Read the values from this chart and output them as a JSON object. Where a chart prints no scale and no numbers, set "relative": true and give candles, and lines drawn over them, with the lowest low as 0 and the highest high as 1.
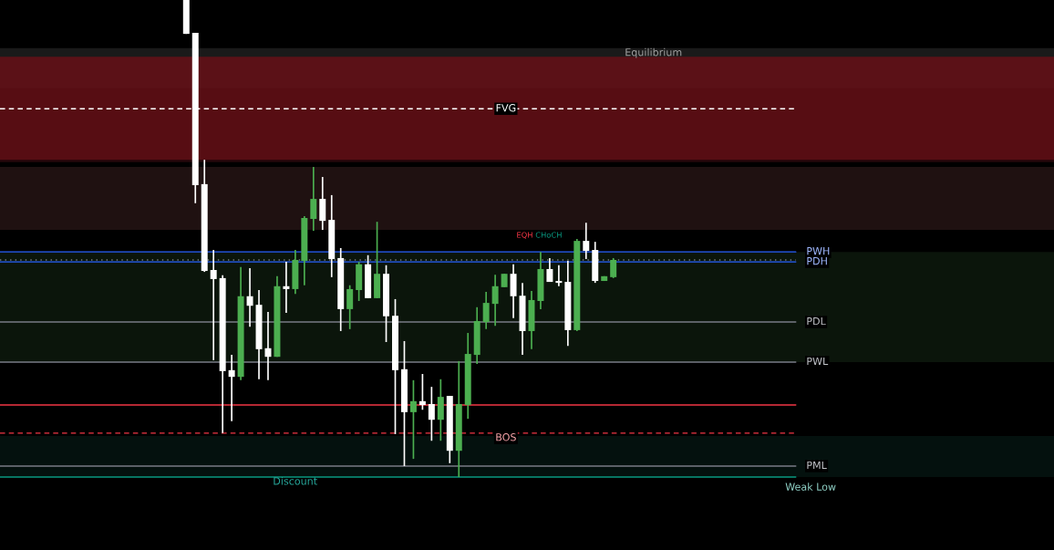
{
  "chart_data": {
    "type": "candlestick",
    "relative": true,
    "categories": [
      null,
      null,
      null,
      null,
      null,
      null,
      null,
      null,
      null,
      null,
      null,
      null,
      null,
      null,
      null,
      null,
      null,
      null,
      null,
      null,
      null,
      null,
      null,
      null,
      null,
      null,
      null,
      null,
      null,
      null,
      null,
      null,
      null,
      null,
      null,
      null,
      null,
      null,
      null,
      null,
      null,
      null,
      null,
      null,
      null,
      null,
      null,
      null,
      null,
      null,
      null,
      null,
      null,
      null,
      null,
      null,
      null,
      null,
      null,
      null,
      null,
      null,
      null,
      null,
      null,
      null,
      null,
      null,
      null,
      null,
      null,
      null,
      null,
      null,
      null,
      null,
      null,
      null,
      null,
      null,
      null,
      null,
      null,
      null,
      null,
      null,
      null,
      null,
      null,
      null,
      null,
      null,
      null,
      null,
      null,
      null,
      null,
      null,
      null,
      null,
      null,
      null,
      null,
      null,
      null,
      null,
      null,
      null,
      null,
      null,
      null,
      null,
      null,
      null,
      null,
      null
    ],
    "ohlc": [
      null,
      null,
      null,
      null,
      null,
      null,
      null,
      null,
      null,
      null,
      null,
      null,
      null,
      null,
      null,
      null,
      null,
      null,
      null,
      null,
      [
        1.0,
        1.0,
        0.929,
        0.929
      ],
      [
        0.931,
        0.931,
        0.574,
        0.612
      ],
      [
        0.614,
        0.665,
        0.43,
        0.432
      ],
      [
        0.434,
        0.476,
        0.245,
        0.415
      ],
      [
        0.417,
        0.423,
        0.092,
        0.222
      ],
      [
        0.224,
        0.256,
        0.117,
        0.21
      ],
      [
        0.21,
        0.44,
        0.203,
        0.379
      ],
      [
        0.379,
        0.438,
        0.315,
        0.359
      ],
      [
        0.361,
        0.392,
        0.205,
        0.268
      ],
      [
        0.27,
        0.346,
        0.203,
        0.252
      ],
      [
        0.252,
        0.421,
        0.252,
        0.4
      ],
      [
        0.4,
        0.451,
        0.344,
        0.394
      ],
      [
        0.394,
        0.476,
        0.384,
        0.455
      ],
      [
        0.453,
        0.547,
        0.402,
        0.543
      ],
      [
        0.541,
        0.65,
        0.516,
        0.583
      ],
      [
        0.583,
        0.629,
        0.518,
        0.537
      ],
      [
        0.539,
        0.591,
        0.419,
        0.457
      ],
      [
        0.459,
        0.48,
        0.306,
        0.352
      ],
      [
        0.352,
        0.402,
        0.31,
        0.394
      ],
      [
        0.392,
        0.451,
        0.369,
        0.446
      ],
      [
        0.446,
        0.465,
        0.375,
        0.375
      ],
      [
        0.375,
        0.535,
        0.375,
        0.426
      ],
      [
        0.426,
        0.444,
        0.283,
        0.337
      ],
      [
        0.338,
        0.373,
        0.09,
        0.224
      ],
      [
        0.226,
        0.285,
        0.023,
        0.136
      ],
      [
        0.136,
        0.203,
        0.038,
        0.159
      ],
      [
        0.159,
        0.216,
        0.141,
        0.151
      ],
      [
        0.153,
        0.189,
        0.076,
        0.12
      ],
      [
        0.12,
        0.205,
        0.076,
        0.168
      ],
      [
        0.17,
        0.17,
        0.029,
        0.055
      ],
      [
        0.055,
        0.243,
        0.0,
        0.153
      ],
      [
        0.151,
        0.302,
        0.122,
        0.258
      ],
      [
        0.256,
        0.356,
        0.237,
        0.327
      ],
      [
        0.325,
        0.388,
        0.31,
        0.365
      ],
      [
        0.363,
        0.424,
        0.317,
        0.4
      ],
      [
        0.398,
        0.426,
        0.398,
        0.426
      ],
      [
        0.426,
        0.446,
        0.333,
        0.379
      ],
      [
        0.38,
        0.407,
        0.256,
        0.306
      ],
      [
        0.306,
        0.39,
        0.268,
        0.371
      ],
      [
        0.369,
        0.472,
        0.352,
        0.436
      ],
      [
        0.436,
        0.459,
        0.409,
        0.409
      ],
      [
        0.411,
        0.444,
        0.4,
        0.407
      ],
      [
        0.409,
        0.453,
        0.275,
        0.308
      ],
      [
        0.308,
        0.499,
        0.306,
        0.495
      ],
      [
        0.495,
        0.533,
        0.457,
        0.474
      ],
      [
        0.476,
        0.493,
        0.407,
        0.411
      ],
      [
        0.411,
        0.421,
        0.411,
        0.421
      ],
      [
        0.419,
        0.459,
        0.417,
        0.455
      ],
      null,
      null,
      null,
      null,
      null,
      null,
      null,
      null,
      null,
      null,
      null,
      null,
      null,
      null,
      null,
      null,
      null,
      null,
      null,
      null,
      null,
      null,
      null,
      null,
      null,
      null,
      null,
      null,
      null,
      null,
      null,
      null,
      null,
      null,
      null,
      null,
      null,
      null,
      null,
      null,
      null,
      null,
      null,
      null,
      null,
      null,
      null,
      null
    ],
    "colors": [
      null,
      null,
      null,
      null,
      null,
      null,
      null,
      null,
      null,
      null,
      null,
      null,
      null,
      null,
      null,
      null,
      null,
      null,
      null,
      null,
      "#ffffff",
      "#ffffff",
      "#ffffff",
      "#ffffff",
      "#ffffff",
      "#ffffff",
      "#4caf50",
      "#ffffff",
      "#ffffff",
      "#ffffff",
      "#4caf50",
      "#ffffff",
      "#4caf50",
      "#4caf50",
      "#4caf50",
      "#ffffff",
      "#ffffff",
      "#ffffff",
      "#4caf50",
      "#4caf50",
      "#ffffff",
      "#4caf50",
      "#ffffff",
      "#ffffff",
      "#ffffff",
      "#4caf50",
      "#ffffff",
      "#ffffff",
      "#4caf50",
      "#ffffff",
      "#4caf50",
      "#4caf50",
      "#4caf50",
      "#4caf50",
      "#4caf50",
      "#4caf50",
      "#ffffff",
      "#ffffff",
      "#4caf50",
      "#4caf50",
      "#ffffff",
      "#ffffff",
      "#ffffff",
      "#4caf50",
      "#ffffff",
      "#ffffff",
      "#4caf50",
      "#4caf50",
      null,
      null,
      null,
      null,
      null,
      null,
      null,
      null,
      null,
      null,
      null,
      null,
      null,
      null,
      null,
      null,
      null,
      null,
      null,
      null,
      null,
      null,
      null,
      null,
      null,
      null,
      null,
      null,
      null,
      null,
      null,
      null,
      null,
      null,
      null,
      null,
      null,
      null,
      null,
      null,
      null,
      null,
      null,
      null,
      null,
      null,
      null,
      null
    ],
    "bands": [
      {
        "axis": "y",
        "from": 0.815,
        "to": 0.899,
        "label": "Equilibrium",
        "color": "#2b2b2b"
      },
      {
        "axis": "y",
        "from": 0.66,
        "to": 0.881,
        "color": "#3a0c12"
      },
      {
        "axis": "y",
        "from": 0.665,
        "to": 0.881,
        "color": "#7a1219"
      },
      {
        "axis": "y",
        "from": 0.518,
        "to": 0.65,
        "color": "#331c1c"
      },
      {
        "axis": "y",
        "from": 0.241,
        "to": 0.472,
        "color": "#132313"
      },
      {
        "axis": "y",
        "from": 0.0,
        "to": 0.086,
        "label": "Discount",
        "color": "#061c18"
      }
    ],
    "ref_lines": [
      {
        "axis": "y",
        "value": 0.772,
        "label": "FVG",
        "color": "#ffffff",
        "line_style": "dashed"
      },
      {
        "axis": "y",
        "value": 0.151,
        "color": "#f23645",
        "line_style": "solid"
      },
      {
        "axis": "y",
        "value": 0.092,
        "label": "BOS",
        "color": "#f23645",
        "line_style": "dashed"
      },
      {
        "axis": "y",
        "value": 0.472,
        "label": "PWH",
        "color": "#2962ff",
        "line_style": "solid"
      },
      {
        "axis": "y",
        "value": 0.455,
        "color": "#787b86",
        "line_style": "dotted"
      },
      {
        "axis": "y",
        "value": 0.451,
        "label": "PDH",
        "color": "#2962ff",
        "line_style": "solid"
      },
      {
        "axis": "y",
        "value": 0.325,
        "label": "PDL",
        "color": "#787b86",
        "line_style": "solid"
      },
      {
        "axis": "y",
        "value": 0.241,
        "label": "PWL",
        "color": "#787b86",
        "line_style": "solid"
      },
      {
        "axis": "y",
        "value": 0.023,
        "label": "PML",
        "color": "#787b86",
        "line_style": "solid"
      },
      {
        "axis": "y",
        "value": 0.0,
        "label": "Weak Low",
        "color": "#089981",
        "line_style": "solid"
      }
    ],
    "annotations": [
      "EQH",
      "CHoCH"
    ]
  }
}
